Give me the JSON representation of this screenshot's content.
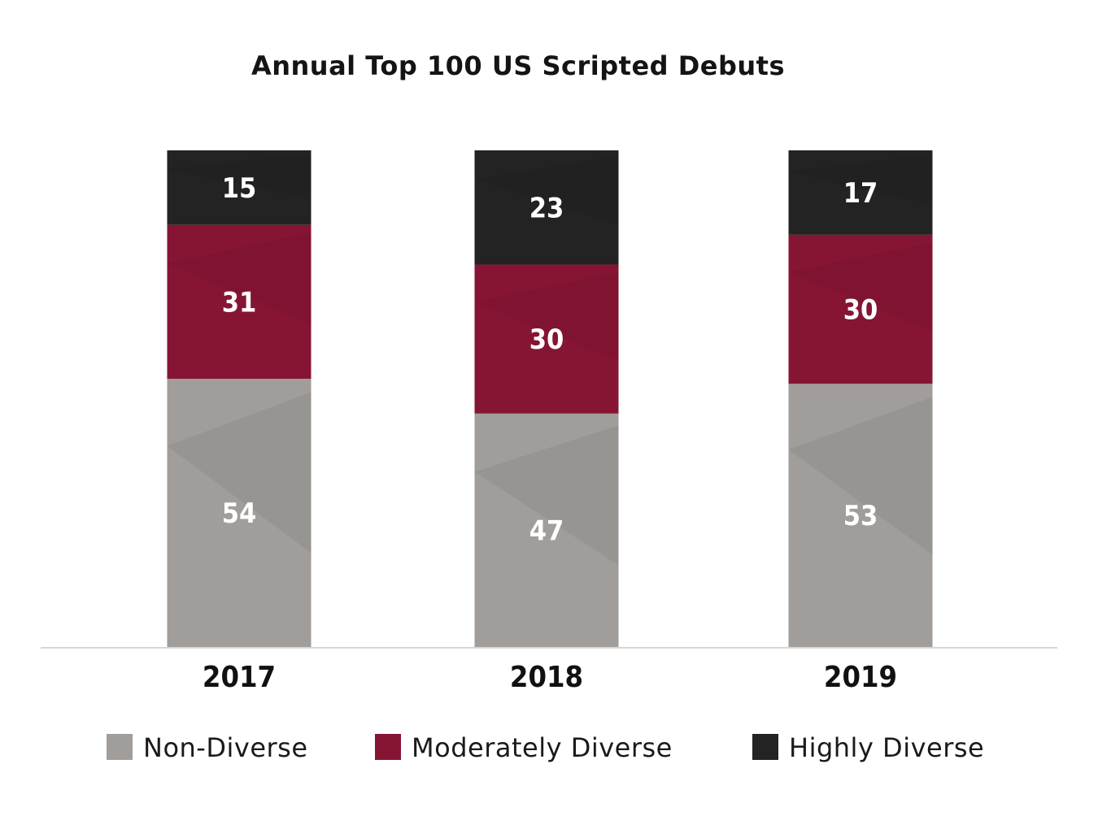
{
  "chart_data": {
    "type": "bar",
    "stacked": true,
    "title": "Annual Top 100 US Scripted Debuts",
    "categories": [
      "2017",
      "2018",
      "2019"
    ],
    "series": [
      {
        "name": "Non-Diverse",
        "values": [
          54,
          47,
          53
        ],
        "color": "#a09d9a"
      },
      {
        "name": "Moderately Diverse",
        "values": [
          31,
          30,
          30
        ],
        "color": "#861534"
      },
      {
        "name": "Highly Diverse",
        "values": [
          15,
          23,
          17
        ],
        "color": "#232323"
      }
    ],
    "xlabel": "",
    "ylabel": "",
    "ylim": [
      0,
      100
    ],
    "grid": false,
    "legend_position": "bottom"
  }
}
